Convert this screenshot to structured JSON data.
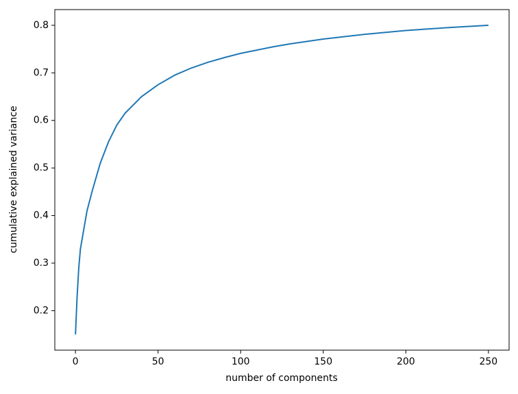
{
  "chart_data": {
    "type": "line",
    "xlabel": "number of components",
    "ylabel": "cumulative explained variance",
    "x": [
      0,
      1,
      2,
      3,
      4,
      5,
      7,
      10,
      15,
      20,
      25,
      30,
      40,
      50,
      60,
      70,
      80,
      90,
      100,
      110,
      120,
      130,
      140,
      150,
      160,
      175,
      200,
      225,
      250
    ],
    "series": [
      {
        "color": "#1f77b4",
        "values": [
          0.15,
          0.23,
          0.29,
          0.33,
          0.35,
          0.37,
          0.41,
          0.45,
          0.51,
          0.555,
          0.59,
          0.615,
          0.65,
          0.675,
          0.695,
          0.71,
          0.722,
          0.732,
          0.741,
          0.748,
          0.755,
          0.761,
          0.766,
          0.771,
          0.775,
          0.781,
          0.789,
          0.795,
          0.8
        ]
      }
    ],
    "xlim": [
      -12.5,
      262.5
    ],
    "ylim": [
      0.117,
      0.833
    ],
    "xticks": [
      0,
      50,
      100,
      150,
      200,
      250
    ],
    "yticks": [
      0.2,
      0.3,
      0.4,
      0.5,
      0.6,
      0.7,
      0.8
    ],
    "grid": false
  }
}
